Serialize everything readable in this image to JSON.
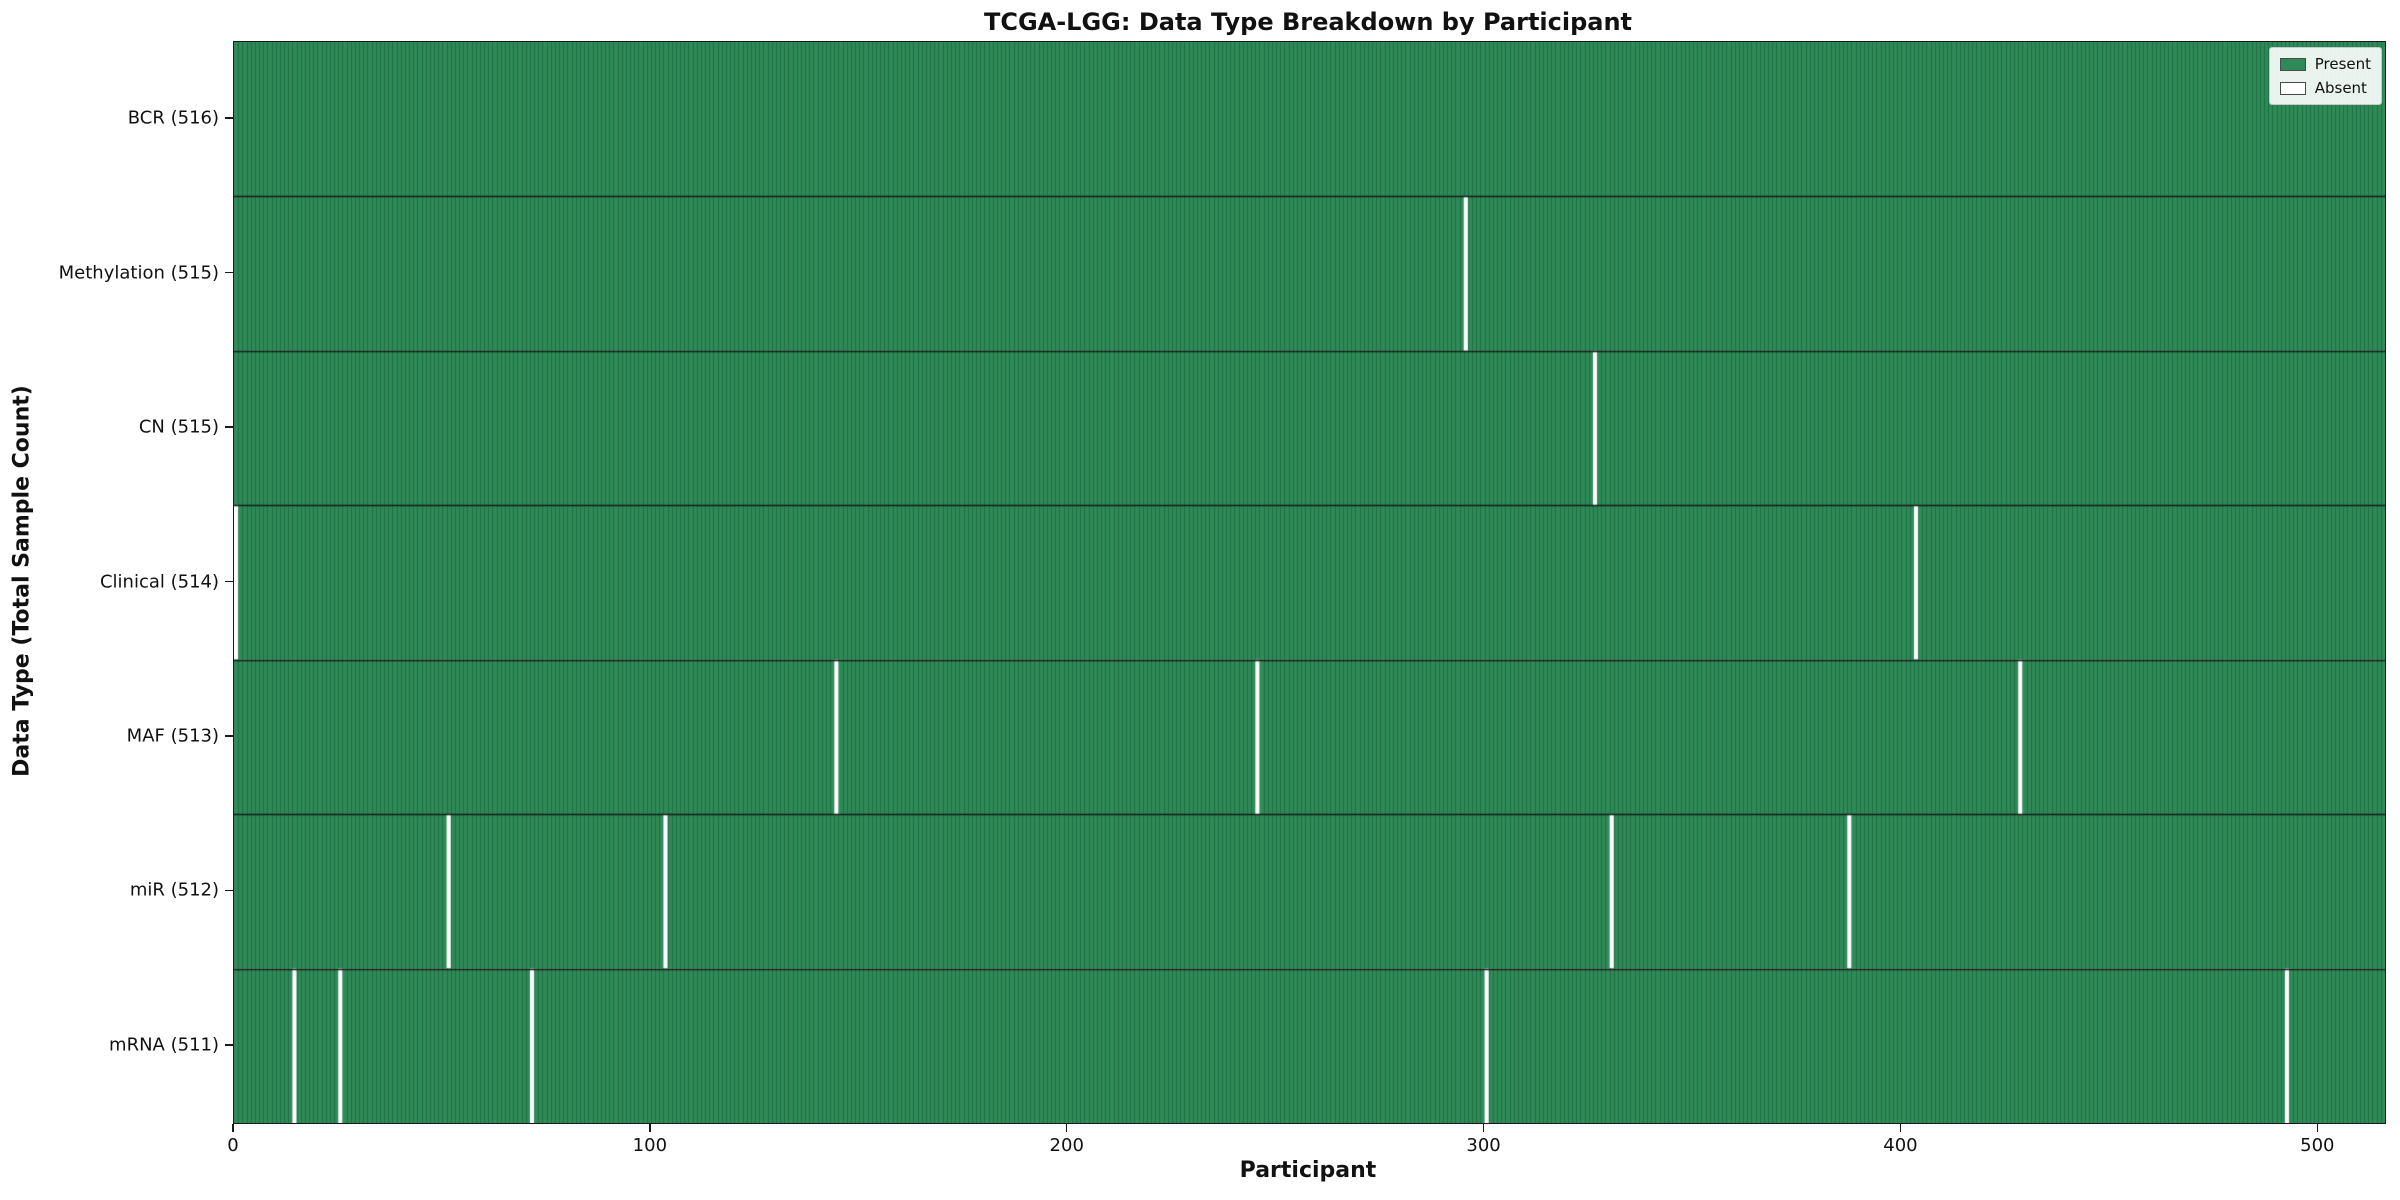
{
  "chart_data": {
    "type": "heatmap",
    "title": "TCGA-LGG: Data Type Breakdown by Participant",
    "xlabel": "Participant",
    "ylabel": "Data Type (Total Sample Count)",
    "x_ticks": [
      0,
      100,
      200,
      300,
      400,
      500
    ],
    "n_participants": 516,
    "rows": [
      {
        "label": "BCR (516)",
        "count": 516,
        "absent_participants": []
      },
      {
        "label": "Methylation (515)",
        "count": 515,
        "absent_participants": [
          295
        ]
      },
      {
        "label": "CN (515)",
        "count": 515,
        "absent_participants": [
          326
        ]
      },
      {
        "label": "Clinical (514)",
        "count": 514,
        "absent_participants": [
          0,
          403
        ]
      },
      {
        "label": "MAF (513)",
        "count": 513,
        "absent_participants": [
          144,
          245,
          428
        ]
      },
      {
        "label": "miR (512)",
        "count": 512,
        "absent_participants": [
          51,
          103,
          330,
          387
        ]
      },
      {
        "label": "mRNA (511)",
        "count": 511,
        "absent_participants": [
          14,
          25,
          71,
          300,
          492
        ]
      }
    ],
    "legend_labels": {
      "present": "Present",
      "absent": "Absent"
    },
    "colors": {
      "present": "#2e8b57",
      "absent": "#ffffff",
      "edge": "#1e6e44",
      "separator": "#1a1a1a"
    },
    "legend_position": "upper right",
    "grid": false
  }
}
